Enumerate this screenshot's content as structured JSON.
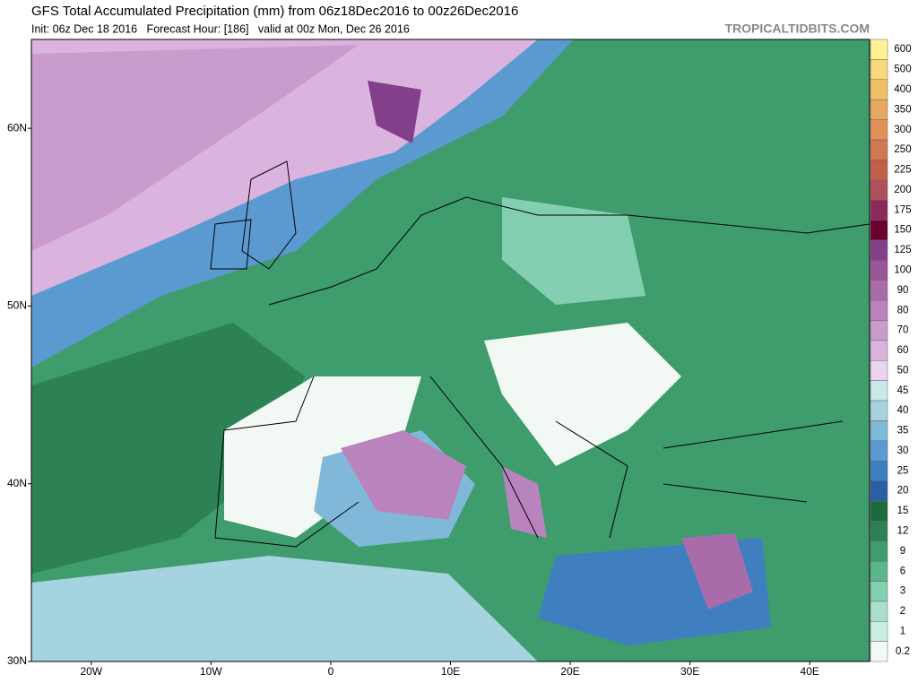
{
  "header": {
    "title": "GFS Total Accumulated Precipitation (mm) from 06z18Dec2016 to 00z26Dec2016",
    "subtitle": "Init: 06z Dec 18 2016   Forecast Hour: [186]   valid at 00z Mon, Dec 26 2016",
    "watermark": "TROPICALTIDBITS.COM"
  },
  "map": {
    "xlim": [
      -25,
      45
    ],
    "ylim": [
      30,
      65
    ],
    "xticks": [
      {
        "value": -20,
        "label": "20W"
      },
      {
        "value": -10,
        "label": "10W"
      },
      0,
      {
        "value": 10,
        "label": "10E"
      },
      {
        "value": 20,
        "label": "20E"
      },
      {
        "value": 30,
        "label": "30E"
      },
      {
        "value": 40,
        "label": "40E"
      }
    ],
    "yticks": [
      {
        "value": 30,
        "label": "30N"
      },
      {
        "value": 40,
        "label": "40N"
      },
      {
        "value": 50,
        "label": "50N"
      },
      {
        "value": 60,
        "label": "60N"
      }
    ]
  },
  "colorbar": {
    "levels": [
      0.2,
      1,
      2,
      3,
      6,
      9,
      12,
      15,
      20,
      25,
      30,
      35,
      40,
      45,
      50,
      60,
      70,
      80,
      90,
      100,
      125,
      150,
      175,
      200,
      225,
      250,
      300,
      350,
      400,
      500,
      600
    ],
    "colors": [
      "#f2f9f5",
      "#c8eee0",
      "#a8e0cc",
      "#84cfb2",
      "#5cb68c",
      "#3f9c6c",
      "#2c8254",
      "#1d6b3d",
      "#2a5ea8",
      "#3f7fc0",
      "#5a9ad0",
      "#7fb8d8",
      "#a6d3e0",
      "#cbe7ea",
      "#ead4ee",
      "#dab4de",
      "#ca9ccd",
      "#b984bd",
      "#a96cab",
      "#985698",
      "#82408a",
      "#6a0030",
      "#8a2a5a",
      "#b0505a",
      "#c06048",
      "#d07850",
      "#e09058",
      "#e8a860",
      "#f0c068",
      "#f8d878",
      "#fff294"
    ]
  }
}
